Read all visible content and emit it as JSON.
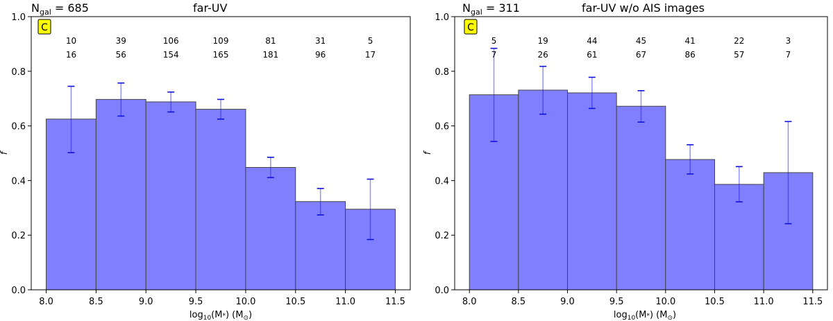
{
  "chart_data": [
    {
      "type": "bar",
      "panel_label": "C",
      "ngal_prefix": "N",
      "ngal_sub": "gal",
      "ngal_value": " = 685",
      "title": "far-UV",
      "xlabel_prefix": "log",
      "xlabel_sub": "10",
      "xlabel_mid": "(M",
      "xlabel_star": "*",
      "xlabel_unit": ") (M",
      "xlabel_sun": "⊙",
      "xlabel_end": ")",
      "ylabel": "f",
      "xlim": [
        7.85,
        11.65
      ],
      "ylim": [
        0.0,
        1.0
      ],
      "xticks": [
        "8.0",
        "8.5",
        "9.0",
        "9.5",
        "10.0",
        "10.5",
        "11.0",
        "11.5"
      ],
      "xtick_values": [
        8.0,
        8.5,
        9.0,
        9.5,
        10.0,
        10.5,
        11.0,
        11.5
      ],
      "yticks": [
        "0.0",
        "0.2",
        "0.4",
        "0.6",
        "0.8",
        "1.0"
      ],
      "ytick_values": [
        0.0,
        0.2,
        0.4,
        0.6,
        0.8,
        1.0
      ],
      "bins": [
        [
          8.0,
          8.5
        ],
        [
          8.5,
          9.0
        ],
        [
          9.0,
          9.5
        ],
        [
          9.5,
          10.0
        ],
        [
          10.0,
          10.5
        ],
        [
          10.5,
          11.0
        ],
        [
          11.0,
          11.5
        ]
      ],
      "values": [
        0.625,
        0.697,
        0.688,
        0.661,
        0.448,
        0.323,
        0.295
      ],
      "err_low": [
        0.502,
        0.636,
        0.651,
        0.625,
        0.411,
        0.274,
        0.184
      ],
      "err_high": [
        0.745,
        0.757,
        0.724,
        0.697,
        0.485,
        0.371,
        0.405
      ],
      "numerators": [
        "10",
        "39",
        "106",
        "109",
        "81",
        "31",
        "5"
      ],
      "denominators": [
        "16",
        "56",
        "154",
        "165",
        "181",
        "96",
        "17"
      ],
      "bar_color": "#8080ff",
      "error_color": "#1010dd"
    },
    {
      "type": "bar",
      "panel_label": "C",
      "ngal_prefix": "N",
      "ngal_sub": "gal",
      "ngal_value": " = 311",
      "title": "far-UV w/o AIS images",
      "xlabel_prefix": "log",
      "xlabel_sub": "10",
      "xlabel_mid": "(M",
      "xlabel_star": "*",
      "xlabel_unit": ") (M",
      "xlabel_sun": "⊙",
      "xlabel_end": ")",
      "ylabel": "f",
      "xlim": [
        7.85,
        11.65
      ],
      "ylim": [
        0.0,
        1.0
      ],
      "xticks": [
        "8.0",
        "8.5",
        "9.0",
        "9.5",
        "10.0",
        "10.5",
        "11.0",
        "11.5"
      ],
      "xtick_values": [
        8.0,
        8.5,
        9.0,
        9.5,
        10.0,
        10.5,
        11.0,
        11.5
      ],
      "yticks": [
        "0.0",
        "0.2",
        "0.4",
        "0.6",
        "0.8",
        "1.0"
      ],
      "ytick_values": [
        0.0,
        0.2,
        0.4,
        0.6,
        0.8,
        1.0
      ],
      "bins": [
        [
          8.0,
          8.5
        ],
        [
          8.5,
          9.0
        ],
        [
          9.0,
          9.5
        ],
        [
          9.5,
          10.0
        ],
        [
          10.0,
          10.5
        ],
        [
          10.5,
          11.0
        ],
        [
          11.0,
          11.5
        ]
      ],
      "values": [
        0.714,
        0.731,
        0.721,
        0.672,
        0.477,
        0.386,
        0.429
      ],
      "err_low": [
        0.543,
        0.643,
        0.664,
        0.614,
        0.424,
        0.322,
        0.242
      ],
      "err_high": [
        0.884,
        0.818,
        0.778,
        0.729,
        0.531,
        0.451,
        0.616
      ],
      "numerators": [
        "5",
        "19",
        "44",
        "45",
        "41",
        "22",
        "3"
      ],
      "denominators": [
        "7",
        "26",
        "61",
        "67",
        "86",
        "57",
        "7"
      ],
      "bar_color": "#8080ff",
      "error_color": "#1010dd"
    }
  ]
}
